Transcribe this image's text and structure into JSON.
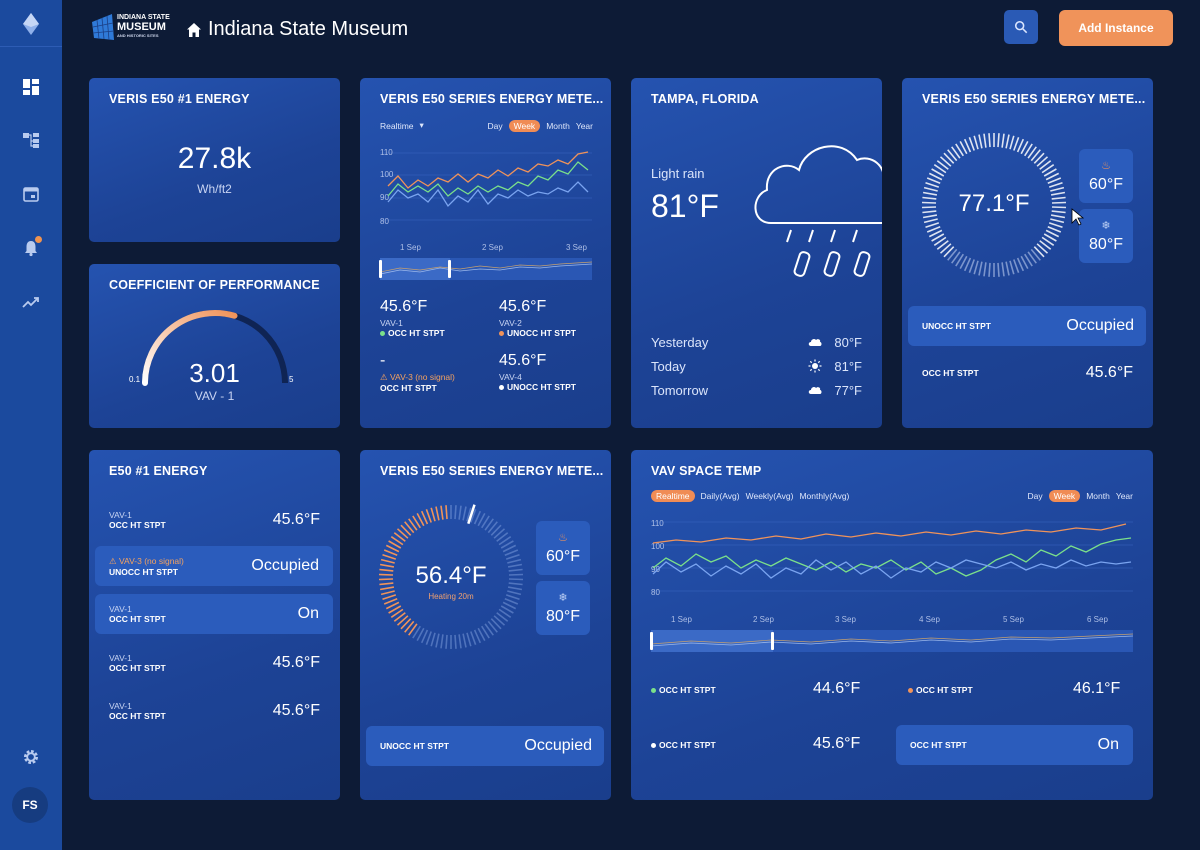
{
  "header": {
    "logo_line1": "INDIANA STATE",
    "logo_line2": "MUSEUM",
    "logo_line3": "AND HISTORIC SITES",
    "title": "Indiana State Museum",
    "add_button": "Add Instance"
  },
  "sidebar": {
    "avatar_initials": "FS",
    "items": [
      "logo-icon",
      "dashboard-icon",
      "hierarchy-icon",
      "calendar-icon",
      "bell-icon",
      "trend-icon",
      "gear-icon"
    ]
  },
  "colors": {
    "orange": "#f0935a",
    "green": "#7be08a",
    "blue": "#7aa4f0",
    "accent": "#2b5cbc"
  },
  "card_energy": {
    "title": "VERIS E50 #1 ENERGY",
    "value": "27.8k",
    "unit": "Wh/ft2"
  },
  "card_cop": {
    "title": "COEFFICIENT OF PERFORMANCE",
    "value": "3.01",
    "label": "VAV - 1",
    "min": "0.1",
    "max": "5",
    "level": 0.59
  },
  "card_meter1": {
    "title": "VERIS E50 SERIES ENERGY METE...",
    "realtime": "Realtime",
    "tabs": [
      "Day",
      "Week",
      "Month",
      "Year"
    ],
    "active_tab": "Week",
    "yticks": [
      "110",
      "100",
      "90",
      "80"
    ],
    "xticks": [
      "1 Sep",
      "2 Sep",
      "3 Sep"
    ],
    "readings": [
      {
        "value": "45.6°F",
        "name": "VAV-1",
        "status": "OCC HT STPT"
      },
      {
        "value": "45.6°F",
        "name": "VAV-2",
        "status": "UNOCC HT STPT"
      },
      {
        "value": "-",
        "name": "VAV-3 (no signal)",
        "status": "OCC HT STPT"
      },
      {
        "value": "45.6°F",
        "name": "VAV-4",
        "status": "UNOCC HT STPT"
      }
    ]
  },
  "card_weather": {
    "title": "TAMPA, FLORIDA",
    "condition": "Light rain",
    "temp": "81°F",
    "forecast": [
      {
        "day": "Yesterday",
        "temp": "80°F",
        "icon": "cloud-icon"
      },
      {
        "day": "Today",
        "temp": "81°F",
        "icon": "sun-icon"
      },
      {
        "day": "Tomorrow",
        "temp": "77°F",
        "icon": "cloud-icon"
      }
    ]
  },
  "card_meter2": {
    "title": "VERIS E50 SERIES ENERGY METE...",
    "temp": "77.1°F",
    "heat": "60°F",
    "cool": "80°F",
    "row1_label": "UNOCC HT STPT",
    "row1_value": "Occupied",
    "row2_label": "OCC HT STPT",
    "row2_value": "45.6°F"
  },
  "card_e50": {
    "title": "E50 #1 ENERGY",
    "rows": [
      {
        "name": "VAV-1",
        "status": "OCC HT STPT",
        "value": "45.6°F"
      },
      {
        "name": "VAV-3 (no signal)",
        "status": "UNOCC HT STPT",
        "value": "Occupied"
      },
      {
        "name": "VAV-1",
        "status": "OCC HT STPT",
        "value": "On"
      },
      {
        "name": "VAV-1",
        "status": "OCC HT STPT",
        "value": "45.6°F"
      },
      {
        "name": "VAV-1",
        "status": "OCC HT STPT",
        "value": "45.6°F"
      }
    ]
  },
  "card_meter3": {
    "title": "VERIS E50 SERIES ENERGY METE...",
    "temp": "56.4°F",
    "mode": "Heating 20m",
    "heat": "60°F",
    "cool": "80°F",
    "row_label": "UNOCC HT STPT",
    "row_value": "Occupied"
  },
  "card_vav": {
    "title": "VAV SPACE TEMP",
    "modes": [
      "Realtime",
      "Daily(Avg)",
      "Weekly(Avg)",
      "Monthly(Avg)"
    ],
    "active_mode": "Realtime",
    "tabs": [
      "Day",
      "Week",
      "Month",
      "Year"
    ],
    "active_tab": "Week",
    "yticks": [
      "110",
      "100",
      "90",
      "80"
    ],
    "xticks": [
      "1 Sep",
      "2 Sep",
      "3 Sep",
      "4 Sep",
      "5 Sep",
      "6 Sep"
    ],
    "readings": [
      {
        "label": "OCC HT STPT",
        "value": "44.6°F"
      },
      {
        "label": "OCC HT STPT",
        "value": "46.1°F"
      },
      {
        "label": "OCC HT STPT",
        "value": "45.6°F"
      },
      {
        "label": "OCC HT STPT",
        "value": "On"
      }
    ]
  }
}
